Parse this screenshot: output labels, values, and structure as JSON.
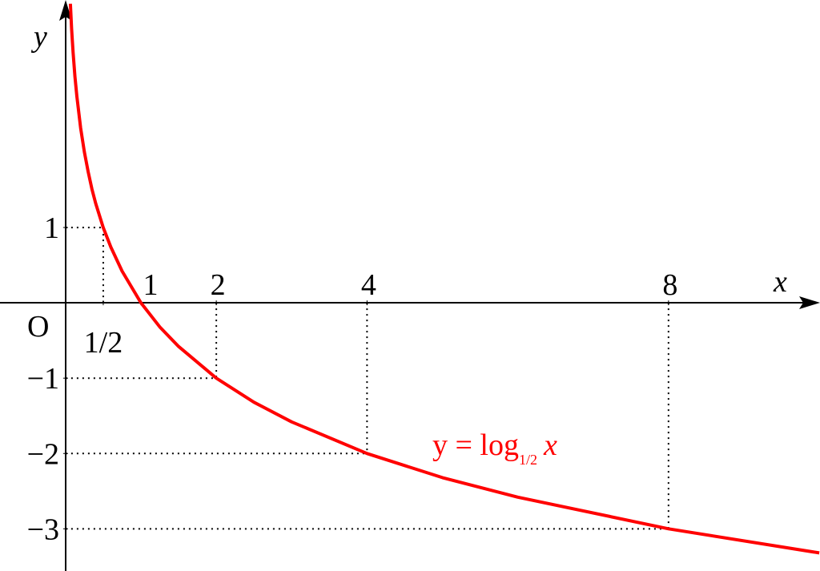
{
  "chart_data": {
    "type": "line",
    "x_label": "x",
    "y_label": "y",
    "origin_label": "O",
    "xlim": [
      -0.87,
      10.01
    ],
    "ylim": [
      -3.56,
      4.02
    ],
    "xticks": [
      {
        "value": 0.5,
        "label": "1/2"
      },
      1,
      2,
      4,
      8
    ],
    "yticks": [
      1,
      {
        "value": -1,
        "label": "−1"
      },
      {
        "value": -2,
        "label": "−2"
      },
      {
        "value": -3,
        "label": "−3"
      }
    ],
    "guides": [
      {
        "x": 0.5,
        "y": 1
      },
      {
        "x": 2,
        "y": -1
      },
      {
        "x": 4,
        "y": -2
      },
      {
        "x": 8,
        "y": -3
      }
    ],
    "series": [
      {
        "name": "y = log",
        "name_base": "1/2",
        "name_arg": "x",
        "color": "#ff0000",
        "x": [
          0.064,
          0.07,
          0.08,
          0.09,
          0.1,
          0.125,
          0.15,
          0.2,
          0.25,
          0.3,
          0.35,
          0.4,
          0.5,
          0.6,
          0.75,
          1,
          1.25,
          1.5,
          2,
          2.5,
          3,
          4,
          5,
          6,
          8,
          10
        ],
        "values": [
          3.97,
          3.84,
          3.64,
          3.47,
          3.32,
          3,
          2.74,
          2.32,
          2,
          1.74,
          1.51,
          1.32,
          1,
          0.74,
          0.42,
          0,
          -0.32,
          -0.58,
          -1,
          -1.32,
          -1.58,
          -2,
          -2.32,
          -2.58,
          -3,
          -3.32
        ]
      }
    ]
  }
}
